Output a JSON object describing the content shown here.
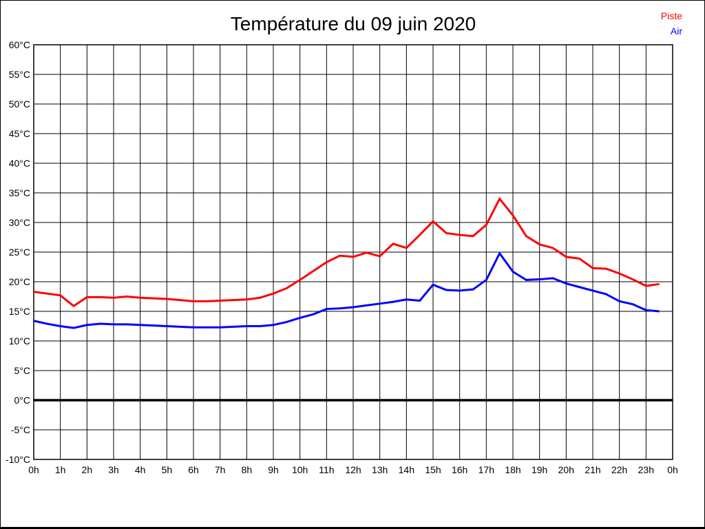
{
  "title": "Température du 09 juin 2020",
  "legend": [
    {
      "label": "Piste",
      "color": "#ff0000"
    },
    {
      "label": "Air",
      "color": "#0000ff"
    }
  ],
  "chart_data": {
    "type": "line",
    "title": "Température du 09 juin 2020",
    "x_unit": "hours",
    "x_start": 0,
    "x_step": 0.5,
    "xlim": [
      0,
      24
    ],
    "ylim": [
      -10,
      60
    ],
    "y_tick_step": 5,
    "grid": true,
    "zero_line_value": 0,
    "legend_position": "top-right",
    "x_tick_labels": [
      "0h",
      "1h",
      "2h",
      "3h",
      "4h",
      "5h",
      "6h",
      "7h",
      "8h",
      "9h",
      "10h",
      "11h",
      "12h",
      "13h",
      "14h",
      "15h",
      "16h",
      "17h",
      "18h",
      "19h",
      "20h",
      "21h",
      "22h",
      "23h",
      "0h"
    ],
    "y_tick_labels": [
      "60°C",
      "55°C",
      "50°C",
      "45°C",
      "40°C",
      "35°C",
      "30°C",
      "25°C",
      "20°C",
      "15°C",
      "10°C",
      "5°C",
      "0°C",
      "-5°C",
      "-10°C"
    ],
    "series": [
      {
        "name": "Piste",
        "color": "#ff0000",
        "values": [
          18.3,
          18.0,
          17.7,
          15.9,
          17.4,
          17.4,
          17.3,
          17.5,
          17.3,
          17.2,
          17.1,
          16.9,
          16.7,
          16.7,
          16.8,
          16.9,
          17.0,
          17.3,
          18.0,
          18.9,
          20.3,
          21.8,
          23.3,
          24.4,
          24.2,
          24.9,
          24.3,
          26.4,
          25.7,
          27.9,
          30.2,
          28.2,
          27.9,
          27.7,
          29.6,
          34.0,
          31.2,
          27.7,
          26.3,
          25.7,
          24.2,
          23.9,
          22.3,
          22.2,
          21.4,
          20.4,
          19.3,
          19.6
        ]
      },
      {
        "name": "Air",
        "color": "#0000ff",
        "values": [
          13.4,
          12.9,
          12.5,
          12.2,
          12.7,
          12.9,
          12.8,
          12.8,
          12.7,
          12.6,
          12.5,
          12.4,
          12.3,
          12.3,
          12.3,
          12.4,
          12.5,
          12.5,
          12.7,
          13.2,
          13.9,
          14.5,
          15.4,
          15.5,
          15.7,
          16.0,
          16.3,
          16.6,
          17.0,
          16.8,
          19.5,
          18.6,
          18.5,
          18.7,
          20.3,
          24.8,
          21.7,
          20.3,
          20.4,
          20.6,
          19.7,
          19.1,
          18.5,
          17.9,
          16.7,
          16.2,
          15.2,
          15.0
        ]
      }
    ]
  }
}
